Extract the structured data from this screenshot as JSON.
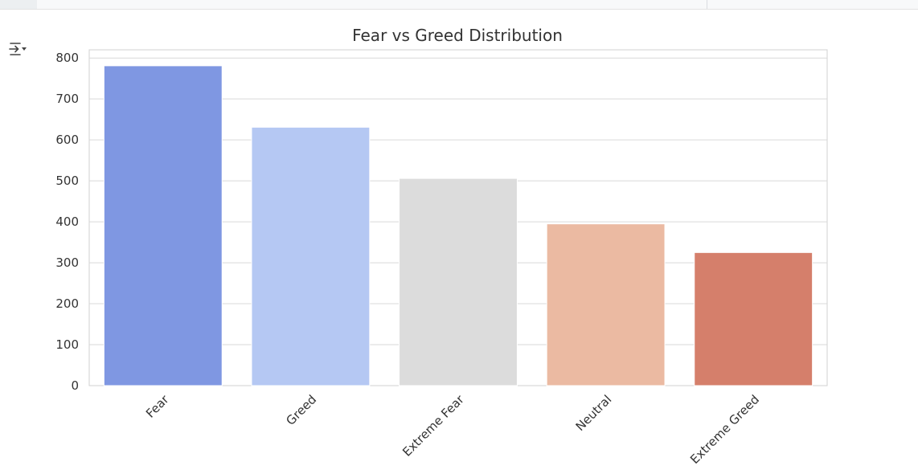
{
  "ui": {
    "output_toggle_icon": "output-collapse-icon"
  },
  "chart_data": {
    "type": "bar",
    "title": "Fear vs Greed Distribution",
    "xlabel": "",
    "ylabel": "",
    "categories": [
      "Fear",
      "Greed",
      "Extreme Fear",
      "Neutral",
      "Extreme Greed"
    ],
    "values": [
      781,
      631,
      506,
      395,
      325
    ],
    "colors": [
      "#7f97e2",
      "#b5c8f3",
      "#dcdcdc",
      "#ebbaa2",
      "#d57f6b"
    ],
    "ylim": [
      0,
      820
    ],
    "yticks": [
      0,
      100,
      200,
      300,
      400,
      500,
      600,
      700,
      800
    ],
    "grid": true,
    "grid_color": "#d9d9d9",
    "x_tick_rotation": 45
  }
}
